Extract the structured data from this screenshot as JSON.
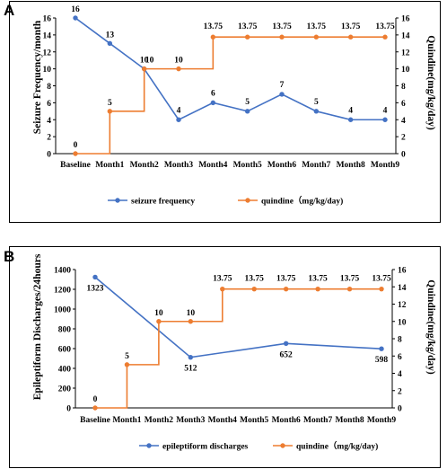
{
  "colors": {
    "blue": "#4472C4",
    "orange": "#ED7D31"
  },
  "chart_data": [
    {
      "type": "line",
      "panel": "A",
      "categories": [
        "Baseline",
        "Month1",
        "Month2",
        "Month3",
        "Month4",
        "Month5",
        "Month6",
        "Month7",
        "Month8",
        "Month9"
      ],
      "ylabel": "Seizure Frequency/month",
      "y2label": "Quindine(mg/kg/day)",
      "ylim": [
        0,
        16
      ],
      "y2lim": [
        0,
        16
      ],
      "yticks": [
        0,
        2,
        4,
        6,
        8,
        10,
        12,
        14,
        16
      ],
      "y2ticks": [
        0,
        2,
        4,
        6,
        8,
        10,
        12,
        14,
        16
      ],
      "series": [
        {
          "name": "seizure frequency",
          "axis": "left",
          "color": "#4472C4",
          "step": false,
          "x": [
            "Baseline",
            "Month1",
            "Month2",
            "Month3",
            "Month4",
            "Month5",
            "Month6",
            "Month7",
            "Month8",
            "Month9"
          ],
          "values": [
            16,
            13,
            10,
            4,
            6,
            5,
            7,
            5,
            4,
            4
          ],
          "labels": [
            "16",
            "13",
            "10",
            "4",
            "6",
            "5",
            "7",
            "5",
            "4",
            "4"
          ]
        },
        {
          "name": "quindine（mg/kg/day)",
          "axis": "right",
          "color": "#ED7D31",
          "step": true,
          "x": [
            "Baseline",
            "Month1",
            "Month2",
            "Month3",
            "Month4",
            "Month5",
            "Month6",
            "Month7",
            "Month8",
            "Month9"
          ],
          "values": [
            0,
            5,
            10,
            10,
            13.75,
            13.75,
            13.75,
            13.75,
            13.75,
            13.75
          ],
          "labels": [
            "0",
            "5",
            "10",
            "10",
            "13.75",
            "13.75",
            "13.75",
            "13.75",
            "13.75",
            "13.75"
          ]
        }
      ],
      "legend": "bottom"
    },
    {
      "type": "line",
      "panel": "B",
      "categories": [
        "Baseline",
        "Month1",
        "Month2",
        "Month3",
        "Month4",
        "Month5",
        "Month6",
        "Month7",
        "Month8",
        "Month9"
      ],
      "ylabel": "Epileptiform Discharges/24hours",
      "y2label": "Quindine(mg/kg/day)",
      "ylim": [
        0,
        1400
      ],
      "y2lim": [
        0,
        16
      ],
      "yticks": [
        0,
        200,
        400,
        600,
        800,
        1000,
        1200,
        1400
      ],
      "y2ticks": [
        0,
        2,
        4,
        6,
        8,
        10,
        12,
        14,
        16
      ],
      "series": [
        {
          "name": "epileptiform discharges",
          "axis": "left",
          "color": "#4472C4",
          "step": false,
          "x": [
            "Baseline",
            "Month3",
            "Month6",
            "Month9"
          ],
          "values": [
            1323,
            512,
            652,
            598
          ],
          "labels": [
            "1323",
            "512",
            "652",
            "598"
          ]
        },
        {
          "name": "quindine（mg/kg/day)",
          "axis": "right",
          "color": "#ED7D31",
          "step": true,
          "x": [
            "Baseline",
            "Month1",
            "Month2",
            "Month3",
            "Month4",
            "Month5",
            "Month6",
            "Month7",
            "Month8",
            "Month9"
          ],
          "values": [
            0,
            5,
            10,
            10,
            13.75,
            13.75,
            13.75,
            13.75,
            13.75,
            13.75
          ],
          "labels": [
            "0",
            "5",
            "10",
            "10",
            "13.75",
            "13.75",
            "13.75",
            "13.75",
            "13.75",
            "13.75"
          ]
        }
      ],
      "legend": "bottom"
    }
  ]
}
